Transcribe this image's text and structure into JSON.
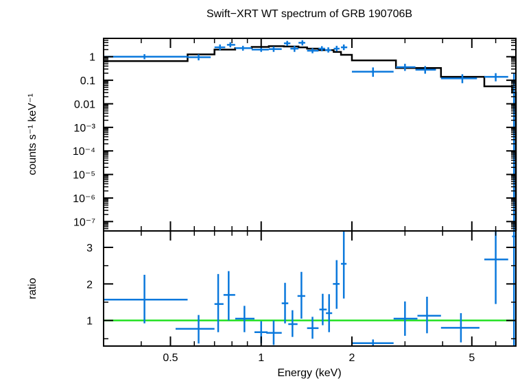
{
  "chart_data": [
    {
      "type": "line",
      "title": "Swift−XRT WT spectrum of GRB 190706B",
      "ylabel": "counts s⁻¹ keV⁻¹",
      "x_scale": "log",
      "y_scale": "log",
      "xlim": [
        0.3,
        7.0
      ],
      "ylim": [
        4e-08,
        6.0
      ],
      "y_ticks": [
        {
          "value": 1,
          "label": "1"
        },
        {
          "value": 0.1,
          "label": "0.1"
        },
        {
          "value": 0.01,
          "label": "0.01"
        },
        {
          "value": 0.001,
          "label": "10⁻³"
        },
        {
          "value": 0.0001,
          "label": "10⁻⁴"
        },
        {
          "value": 1e-05,
          "label": "10⁻⁵"
        },
        {
          "value": 1e-06,
          "label": "10⁻⁶"
        },
        {
          "value": 1e-07,
          "label": "10⁻⁷"
        }
      ],
      "series": [
        {
          "kind": "data",
          "color": "#0a78dc",
          "points": [
            {
              "x": 0.41,
              "xlo": 0.3,
              "xhi": 0.57,
              "y": 1.0,
              "ylo": 0.78,
              "yhi": 1.28
            },
            {
              "x": 0.62,
              "xlo": 0.57,
              "xhi": 0.68,
              "y": 0.95,
              "ylo": 0.7,
              "yhi": 1.25
            },
            {
              "x": 0.73,
              "xlo": 0.7,
              "xhi": 0.76,
              "y": 2.5,
              "ylo": 1.9,
              "yhi": 3.3
            },
            {
              "x": 0.79,
              "xlo": 0.77,
              "xhi": 0.82,
              "y": 3.2,
              "ylo": 2.5,
              "yhi": 4.1
            },
            {
              "x": 0.87,
              "xlo": 0.82,
              "xhi": 0.93,
              "y": 2.3,
              "ylo": 1.8,
              "yhi": 2.9
            },
            {
              "x": 1.0,
              "xlo": 0.93,
              "xhi": 1.06,
              "y": 2.0,
              "ylo": 1.6,
              "yhi": 2.5
            },
            {
              "x": 1.1,
              "xlo": 1.06,
              "xhi": 1.17,
              "y": 2.1,
              "ylo": 1.6,
              "yhi": 2.7
            },
            {
              "x": 1.22,
              "xlo": 1.19,
              "xhi": 1.25,
              "y": 3.7,
              "ylo": 2.9,
              "yhi": 4.7
            },
            {
              "x": 1.29,
              "xlo": 1.25,
              "xhi": 1.33,
              "y": 2.2,
              "ylo": 1.6,
              "yhi": 2.9
            },
            {
              "x": 1.37,
              "xlo": 1.33,
              "xhi": 1.4,
              "y": 3.9,
              "ylo": 3.0,
              "yhi": 5.0
            },
            {
              "x": 1.48,
              "xlo": 1.42,
              "xhi": 1.55,
              "y": 1.8,
              "ylo": 1.4,
              "yhi": 2.3
            },
            {
              "x": 1.59,
              "xlo": 1.55,
              "xhi": 1.63,
              "y": 2.2,
              "ylo": 1.7,
              "yhi": 2.8
            },
            {
              "x": 1.67,
              "xlo": 1.63,
              "xhi": 1.71,
              "y": 1.9,
              "ylo": 1.5,
              "yhi": 2.5
            },
            {
              "x": 1.78,
              "xlo": 1.74,
              "xhi": 1.82,
              "y": 2.2,
              "ylo": 1.7,
              "yhi": 2.9
            },
            {
              "x": 1.88,
              "xlo": 1.84,
              "xhi": 1.93,
              "y": 2.5,
              "ylo": 1.9,
              "yhi": 3.3
            },
            {
              "x": 2.35,
              "xlo": 2.0,
              "xhi": 2.75,
              "y": 0.23,
              "ylo": 0.14,
              "yhi": 0.35
            },
            {
              "x": 3.0,
              "xlo": 2.8,
              "xhi": 3.25,
              "y": 0.36,
              "ylo": 0.25,
              "yhi": 0.5
            },
            {
              "x": 3.5,
              "xlo": 3.25,
              "xhi": 3.8,
              "y": 0.28,
              "ylo": 0.19,
              "yhi": 0.4
            },
            {
              "x": 4.65,
              "xlo": 3.95,
              "xhi": 5.2,
              "y": 0.12,
              "ylo": 0.075,
              "yhi": 0.18
            },
            {
              "x": 6.0,
              "xlo": 5.5,
              "xhi": 6.6,
              "y": 0.14,
              "ylo": 0.09,
              "yhi": 0.2
            },
            {
              "x": 6.9,
              "xlo": 6.8,
              "xhi": 7.0,
              "y": 0.09,
              "ylo": 4e-08,
              "yhi": 0.2
            }
          ]
        },
        {
          "kind": "model",
          "color": "#000000",
          "steps": [
            {
              "x0": 0.3,
              "x1": 0.57,
              "y": 0.65
            },
            {
              "x0": 0.57,
              "x1": 0.7,
              "y": 1.25
            },
            {
              "x0": 0.7,
              "x1": 0.82,
              "y": 2.0
            },
            {
              "x0": 0.82,
              "x1": 0.93,
              "y": 2.3
            },
            {
              "x0": 0.93,
              "x1": 1.06,
              "y": 2.6
            },
            {
              "x0": 1.06,
              "x1": 1.19,
              "y": 2.8
            },
            {
              "x0": 1.19,
              "x1": 1.33,
              "y": 2.7
            },
            {
              "x0": 1.33,
              "x1": 1.42,
              "y": 2.5
            },
            {
              "x0": 1.42,
              "x1": 1.55,
              "y": 2.2
            },
            {
              "x0": 1.55,
              "x1": 1.74,
              "y": 1.9
            },
            {
              "x0": 1.74,
              "x1": 1.84,
              "y": 1.6
            },
            {
              "x0": 1.84,
              "x1": 2.0,
              "y": 1.2
            },
            {
              "x0": 2.0,
              "x1": 2.8,
              "y": 0.7
            },
            {
              "x0": 2.8,
              "x1": 3.95,
              "y": 0.33
            },
            {
              "x0": 3.95,
              "x1": 5.5,
              "y": 0.14
            },
            {
              "x0": 5.5,
              "x1": 6.8,
              "y": 0.055
            },
            {
              "x0": 6.8,
              "x1": 7.0,
              "y": 0.03
            }
          ]
        }
      ]
    },
    {
      "type": "scatter",
      "xlabel": "Energy (keV)",
      "ylabel": "ratio",
      "x_scale": "log",
      "y_scale": "linear",
      "xlim": [
        0.3,
        7.0
      ],
      "ylim": [
        0.3,
        3.45
      ],
      "x_ticks": [
        {
          "value": 0.5,
          "label": "0.5"
        },
        {
          "value": 1,
          "label": "1"
        },
        {
          "value": 2,
          "label": "2"
        },
        {
          "value": 5,
          "label": "5"
        }
      ],
      "y_ticks": [
        {
          "value": 1,
          "label": "1"
        },
        {
          "value": 2,
          "label": "2"
        },
        {
          "value": 3,
          "label": "3"
        }
      ],
      "reference_line": {
        "y": 1,
        "color": "#22e022"
      },
      "series": [
        {
          "kind": "data",
          "color": "#0a78dc",
          "points": [
            {
              "x": 0.41,
              "xlo": 0.3,
              "xhi": 0.57,
              "y": 1.57,
              "ylo": 0.92,
              "yhi": 2.25
            },
            {
              "x": 0.62,
              "xlo": 0.52,
              "xhi": 0.7,
              "y": 0.77,
              "ylo": 0.37,
              "yhi": 1.15
            },
            {
              "x": 0.72,
              "xlo": 0.7,
              "xhi": 0.75,
              "y": 1.45,
              "ylo": 0.68,
              "yhi": 2.27
            },
            {
              "x": 0.78,
              "xlo": 0.75,
              "xhi": 0.82,
              "y": 1.7,
              "ylo": 1.0,
              "yhi": 2.35
            },
            {
              "x": 0.88,
              "xlo": 0.82,
              "xhi": 0.95,
              "y": 1.05,
              "ylo": 0.68,
              "yhi": 1.4
            },
            {
              "x": 1.0,
              "xlo": 0.95,
              "xhi": 1.05,
              "y": 0.68,
              "ylo": 0.38,
              "yhi": 0.98
            },
            {
              "x": 1.1,
              "xlo": 1.04,
              "xhi": 1.17,
              "y": 0.66,
              "ylo": 0.33,
              "yhi": 1.0
            },
            {
              "x": 1.2,
              "xlo": 1.17,
              "xhi": 1.23,
              "y": 1.47,
              "ylo": 0.92,
              "yhi": 2.03
            },
            {
              "x": 1.27,
              "xlo": 1.23,
              "xhi": 1.32,
              "y": 0.9,
              "ylo": 0.55,
              "yhi": 1.28
            },
            {
              "x": 1.36,
              "xlo": 1.32,
              "xhi": 1.4,
              "y": 1.67,
              "ylo": 1.05,
              "yhi": 2.33
            },
            {
              "x": 1.48,
              "xlo": 1.42,
              "xhi": 1.55,
              "y": 0.79,
              "ylo": 0.5,
              "yhi": 1.1
            },
            {
              "x": 1.6,
              "xlo": 1.56,
              "xhi": 1.65,
              "y": 1.3,
              "ylo": 0.87,
              "yhi": 1.73
            },
            {
              "x": 1.68,
              "xlo": 1.64,
              "xhi": 1.72,
              "y": 1.2,
              "ylo": 0.68,
              "yhi": 1.72
            },
            {
              "x": 1.78,
              "xlo": 1.73,
              "xhi": 1.82,
              "y": 2.0,
              "ylo": 1.32,
              "yhi": 2.65
            },
            {
              "x": 1.88,
              "xlo": 1.84,
              "xhi": 1.92,
              "y": 2.55,
              "ylo": 1.6,
              "yhi": 3.5
            },
            {
              "x": 2.35,
              "xlo": 2.0,
              "xhi": 2.75,
              "y": 0.38,
              "ylo": 0.28,
              "yhi": 0.48
            },
            {
              "x": 3.0,
              "xlo": 2.75,
              "xhi": 3.3,
              "y": 1.05,
              "ylo": 0.58,
              "yhi": 1.52
            },
            {
              "x": 3.55,
              "xlo": 3.3,
              "xhi": 3.95,
              "y": 1.13,
              "ylo": 0.65,
              "yhi": 1.65
            },
            {
              "x": 4.6,
              "xlo": 3.95,
              "xhi": 5.3,
              "y": 0.8,
              "ylo": 0.4,
              "yhi": 1.2
            },
            {
              "x": 6.0,
              "xlo": 5.5,
              "xhi": 6.6,
              "y": 2.67,
              "ylo": 1.45,
              "yhi": 3.45
            },
            {
              "x": 6.9,
              "xlo": 6.8,
              "xhi": 7.0,
              "y": 3.3,
              "ylo": 0.3,
              "yhi": 3.45
            }
          ]
        }
      ]
    }
  ]
}
